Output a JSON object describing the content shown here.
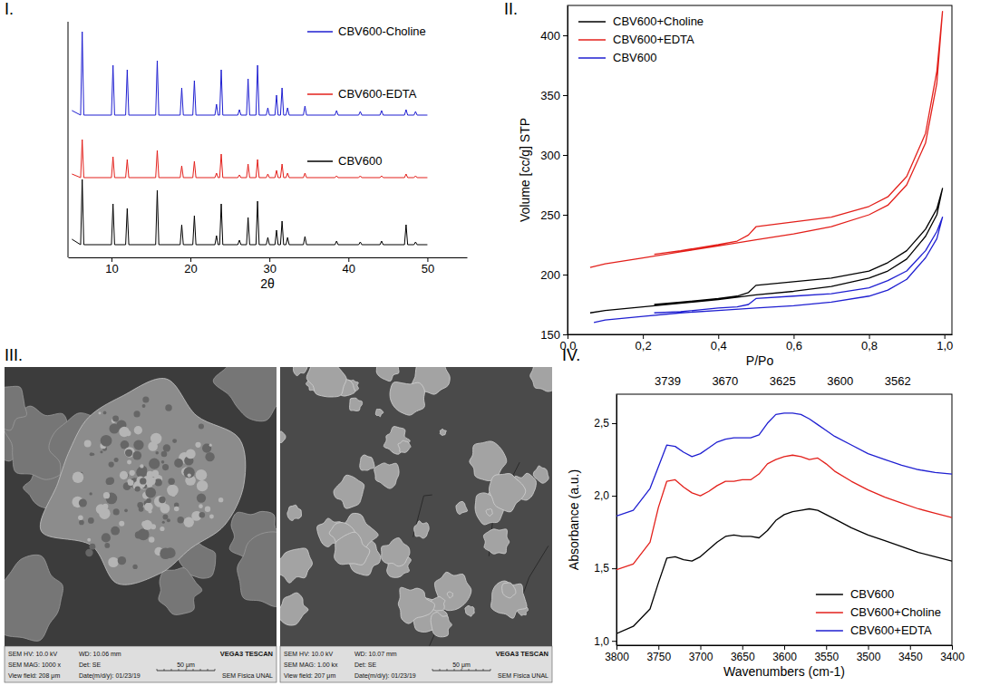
{
  "chart_data": [
    {
      "type": "line",
      "label": "I.",
      "xlabel": "2θ",
      "xlim": [
        4.5,
        55
      ],
      "xticks": [
        10,
        20,
        30,
        40,
        50
      ],
      "ylim": [
        0,
        260
      ],
      "tick_labels": "x",
      "grid": false,
      "legend": "right",
      "x": [
        5.0,
        6.1,
        6.3,
        6.5,
        10.0,
        10.2,
        10.4,
        11.8,
        12.0,
        12.2,
        15.6,
        15.8,
        16.0,
        18.7,
        18.9,
        19.1,
        20.3,
        20.5,
        20.7,
        23.1,
        23.3,
        23.5,
        23.7,
        23.9,
        24.1,
        26.0,
        26.2,
        26.4,
        27.1,
        27.3,
        27.5,
        28.3,
        28.5,
        28.7,
        29.6,
        29.8,
        30.0,
        30.7,
        30.9,
        31.1,
        31.4,
        31.6,
        31.8,
        32.1,
        32.3,
        32.5,
        34.3,
        34.5,
        34.7,
        38.3,
        38.5,
        38.7,
        41.3,
        41.5,
        41.7,
        44.0,
        44.2,
        44.4,
        47.1,
        47.3,
        47.5,
        48.3,
        48.5,
        48.7,
        50.0
      ],
      "series": [
        {
          "name": "CBV600-Choline",
          "color": "#1f1fd1",
          "values": [
            162,
            157,
            249,
            157,
            157,
            212,
            157,
            157,
            207,
            157,
            157,
            217,
            157,
            157,
            187,
            157,
            157,
            195,
            157,
            157,
            169,
            157,
            157,
            207,
            157,
            157,
            163,
            157,
            157,
            197,
            157,
            157,
            212,
            157,
            157,
            165,
            157,
            157,
            179,
            157,
            157,
            187,
            157,
            157,
            165,
            157,
            157,
            167,
            157,
            157,
            162,
            157,
            157,
            161,
            157,
            157,
            162,
            157,
            157,
            163,
            157,
            157,
            161,
            157,
            157
          ]
        },
        {
          "name": "CBV600-EDTA",
          "color": "#e3201b",
          "values": [
            92,
            88,
            130,
            88,
            88,
            111,
            88,
            88,
            108,
            88,
            88,
            118,
            88,
            88,
            101,
            88,
            88,
            106,
            88,
            88,
            93,
            88,
            88,
            114,
            88,
            88,
            91,
            88,
            88,
            103,
            88,
            88,
            108,
            88,
            88,
            92,
            88,
            88,
            96,
            88,
            88,
            103,
            88,
            88,
            93,
            88,
            88,
            93,
            88,
            88,
            90,
            88,
            88,
            90,
            88,
            88,
            90,
            88,
            88,
            92,
            88,
            88,
            90,
            88,
            88
          ]
        },
        {
          "name": "CBV600",
          "color": "#000000",
          "values": [
            20,
            14,
            86,
            14,
            14,
            59,
            14,
            14,
            54,
            14,
            14,
            74,
            14,
            14,
            36,
            14,
            14,
            46,
            14,
            14,
            24,
            14,
            14,
            59,
            14,
            14,
            19,
            14,
            14,
            44,
            14,
            14,
            62,
            14,
            14,
            22,
            14,
            14,
            30,
            14,
            14,
            40,
            14,
            14,
            22,
            14,
            14,
            23,
            14,
            14,
            18,
            14,
            14,
            17,
            14,
            14,
            18,
            14,
            14,
            36,
            14,
            14,
            17,
            14,
            14
          ]
        }
      ]
    },
    {
      "type": "line",
      "label": "II.",
      "xlabel": "P/Po",
      "ylabel": "Volume [cc/g] STP",
      "xlim": [
        0,
        1.02
      ],
      "xticks": [
        {
          "value": 0,
          "label": "0,0"
        },
        {
          "value": 0.2,
          "label": "0,2"
        },
        {
          "value": 0.4,
          "label": "0,4"
        },
        {
          "value": 0.6,
          "label": "0,6"
        },
        {
          "value": 0.8,
          "label": "0,8"
        },
        {
          "value": 1.0,
          "label": "1,0"
        }
      ],
      "ylim": [
        150,
        425
      ],
      "yticks": [
        150,
        200,
        250,
        300,
        350,
        400
      ],
      "grid": false,
      "legend": "upper left",
      "series": [
        {
          "name": "CBV600+Choline",
          "color": "#000000",
          "x": [
            0.06,
            0.1,
            0.2,
            0.3,
            0.4,
            0.5,
            0.6,
            0.7,
            0.8,
            0.85,
            0.9,
            0.95,
            0.98,
            0.995,
            0.98,
            0.95,
            0.9,
            0.85,
            0.8,
            0.7,
            0.6,
            0.5,
            0.48,
            0.45,
            0.4,
            0.3,
            0.23
          ],
          "values": [
            168,
            170,
            173,
            176,
            179,
            183,
            186,
            190,
            197,
            203,
            213,
            232,
            250,
            272,
            255,
            238,
            220,
            210,
            203,
            197,
            194,
            191,
            185,
            182,
            180,
            177,
            175
          ]
        },
        {
          "name": "CBV600+EDTA",
          "color": "#e3201b",
          "x": [
            0.06,
            0.1,
            0.2,
            0.3,
            0.4,
            0.5,
            0.6,
            0.7,
            0.8,
            0.85,
            0.9,
            0.95,
            0.98,
            0.995,
            0.98,
            0.95,
            0.9,
            0.85,
            0.8,
            0.7,
            0.6,
            0.5,
            0.48,
            0.45,
            0.4,
            0.3,
            0.23
          ],
          "values": [
            206,
            209,
            214,
            219,
            224,
            229,
            234,
            240,
            250,
            258,
            275,
            310,
            360,
            420,
            370,
            318,
            282,
            265,
            257,
            248,
            244,
            240,
            233,
            228,
            225,
            220,
            217
          ]
        },
        {
          "name": "CBV600",
          "color": "#1f1fd1",
          "x": [
            0.07,
            0.1,
            0.2,
            0.3,
            0.4,
            0.5,
            0.6,
            0.7,
            0.8,
            0.85,
            0.9,
            0.95,
            0.98,
            0.995,
            0.98,
            0.95,
            0.9,
            0.85,
            0.8,
            0.7,
            0.6,
            0.5,
            0.48,
            0.45,
            0.4,
            0.3,
            0.23
          ],
          "values": [
            160,
            162,
            165,
            168,
            170,
            172,
            174,
            177,
            182,
            187,
            196,
            214,
            230,
            248,
            236,
            220,
            203,
            195,
            189,
            184,
            182,
            180,
            175,
            173,
            172,
            169,
            168
          ]
        }
      ]
    },
    {
      "type": "image",
      "label": "III.",
      "images": [
        {
          "info": [
            [
              "SEM HV: 10.0 kV",
              "WD: 10.06 mm",
              "VEGA3 TESCAN"
            ],
            [
              "SEM MAG: 1000 x",
              "Det: SE",
              "50 μm"
            ],
            [
              "View field: 208 μm",
              "Date(m/d/y): 01/23/19",
              "SEM Fisica UNAL"
            ]
          ]
        },
        {
          "info": [
            [
              "SEM HV: 10.0 kV",
              "WD: 10.07 mm",
              "VEGA3 TESCAN"
            ],
            [
              "SEM MAG: 1.00 kx",
              "Det: SE",
              "50 μm"
            ],
            [
              "View field: 207 μm",
              "Date(m/d/y): 01/23/19",
              "SEM Fisica UNAL"
            ]
          ]
        }
      ]
    },
    {
      "type": "line",
      "label": "IV.",
      "xlabel": "Wavenumbers (cm-1)",
      "ylabel": "Absorbance (a.u.)",
      "xlim": [
        3800,
        3400
      ],
      "xticks": [
        3800,
        3750,
        3700,
        3650,
        3600,
        3550,
        3500,
        3450,
        3400
      ],
      "ylim": [
        0.97,
        2.7
      ],
      "yticks": [
        {
          "value": 1.0,
          "label": "1,0"
        },
        {
          "value": 1.5,
          "label": "1,5"
        },
        {
          "value": 2.0,
          "label": "2,0"
        },
        {
          "value": 2.5,
          "label": "2,5"
        }
      ],
      "grid": false,
      "legend": "lower right",
      "annotations": [
        3739,
        3670,
        3625,
        3600,
        3562
      ],
      "x": [
        3800,
        3780,
        3760,
        3750,
        3740,
        3730,
        3720,
        3710,
        3700,
        3690,
        3680,
        3670,
        3660,
        3650,
        3640,
        3630,
        3620,
        3610,
        3600,
        3590,
        3580,
        3570,
        3560,
        3550,
        3540,
        3520,
        3500,
        3480,
        3460,
        3440,
        3420,
        3400
      ],
      "series": [
        {
          "name": "CBV600",
          "color": "#000000",
          "values": [
            1.05,
            1.1,
            1.22,
            1.4,
            1.57,
            1.58,
            1.56,
            1.55,
            1.58,
            1.63,
            1.68,
            1.72,
            1.73,
            1.72,
            1.72,
            1.71,
            1.76,
            1.83,
            1.87,
            1.89,
            1.9,
            1.91,
            1.9,
            1.87,
            1.84,
            1.78,
            1.73,
            1.69,
            1.65,
            1.61,
            1.58,
            1.55
          ]
        },
        {
          "name": "CBV600+Choline",
          "color": "#e3201b",
          "values": [
            1.49,
            1.53,
            1.68,
            1.92,
            2.1,
            2.11,
            2.06,
            2.02,
            2.0,
            2.03,
            2.07,
            2.1,
            2.1,
            2.11,
            2.11,
            2.15,
            2.22,
            2.25,
            2.27,
            2.28,
            2.27,
            2.25,
            2.26,
            2.22,
            2.17,
            2.1,
            2.04,
            1.99,
            1.95,
            1.91,
            1.88,
            1.85
          ]
        },
        {
          "name": "CBV600+EDTA",
          "color": "#1f1fd1",
          "values": [
            1.86,
            1.9,
            2.05,
            2.2,
            2.35,
            2.34,
            2.3,
            2.27,
            2.29,
            2.33,
            2.37,
            2.39,
            2.4,
            2.4,
            2.4,
            2.42,
            2.5,
            2.56,
            2.57,
            2.57,
            2.56,
            2.53,
            2.49,
            2.45,
            2.41,
            2.35,
            2.29,
            2.25,
            2.21,
            2.18,
            2.16,
            2.15
          ]
        }
      ]
    }
  ]
}
